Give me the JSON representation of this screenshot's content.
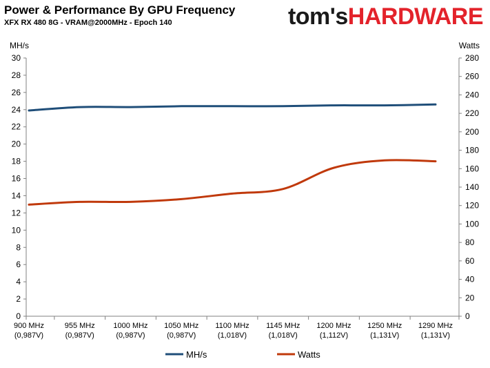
{
  "header": {
    "title": "Power & Performance By GPU Frequency",
    "subtitle": "XFX RX 480 8G - VRAM@2000MHz - Epoch 140",
    "logo_part1": "tom's",
    "logo_part2": "HARDWARE"
  },
  "colors": {
    "mhs": "#1f4e79",
    "watts": "#c0390b",
    "axis": "#808080",
    "logo_red": "#e3232b"
  },
  "chart_data": {
    "type": "line",
    "title": "Power & Performance By GPU Frequency",
    "subtitle": "XFX RX 480 8G - VRAM@2000MHz - Epoch 140",
    "categories": [
      [
        "900 MHz",
        "(0,987V)"
      ],
      [
        "955 MHz",
        "(0,987V)"
      ],
      [
        "1000 MHz",
        "(0,987V)"
      ],
      [
        "1050 MHz",
        "(0,987V)"
      ],
      [
        "1100 MHz",
        "(1,018V)"
      ],
      [
        "1145 MHz",
        "(1,018V)"
      ],
      [
        "1200 MHz",
        "(1,112V)"
      ],
      [
        "1250 MHz",
        "(1,131V)"
      ],
      [
        "1290 MHz",
        "(1,131V)"
      ]
    ],
    "ylabel_left": "MH/s",
    "ylabel_right": "Watts",
    "ylim_left": [
      0,
      30
    ],
    "ylim_right": [
      0,
      280
    ],
    "yticks_left": [
      0,
      2,
      4,
      6,
      8,
      10,
      12,
      14,
      16,
      18,
      20,
      22,
      24,
      26,
      28,
      30
    ],
    "yticks_right": [
      0,
      20,
      40,
      60,
      80,
      100,
      120,
      140,
      160,
      180,
      200,
      220,
      240,
      260,
      280
    ],
    "grid": false,
    "legend_position": "bottom",
    "series": [
      {
        "name": "MH/s",
        "axis": "left",
        "values": [
          23.9,
          24.3,
          24.3,
          24.4,
          24.4,
          24.4,
          24.5,
          24.5,
          24.6
        ]
      },
      {
        "name": "Watts",
        "axis": "right",
        "values": [
          121,
          124,
          124,
          127,
          133,
          138,
          161,
          169,
          168
        ]
      }
    ]
  }
}
